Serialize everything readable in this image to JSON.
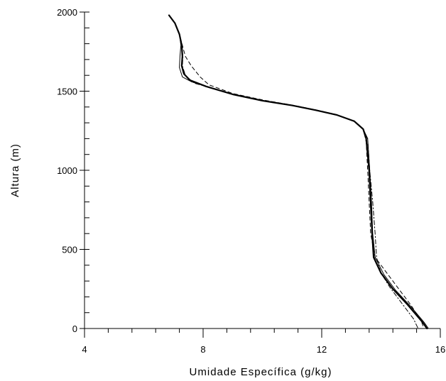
{
  "chart_data": {
    "type": "line",
    "title": "",
    "xlabel": "Umidade Específica (g/kg)",
    "ylabel": "Altura (m)",
    "xlim": [
      4,
      16
    ],
    "ylim": [
      0,
      2000
    ],
    "x_ticks": [
      4,
      8,
      12,
      16
    ],
    "y_ticks": [
      0,
      500,
      1000,
      1500,
      2000
    ],
    "x_minor_step": 0.8,
    "y_minor_step": 100,
    "grid": false,
    "legend": "none",
    "line_color": "#000000",
    "series": [
      {
        "style": "solid-bold",
        "points": [
          [
            6.85,
            1980
          ],
          [
            7.05,
            1930
          ],
          [
            7.2,
            1860
          ],
          [
            7.28,
            1790
          ],
          [
            7.3,
            1720
          ],
          [
            7.28,
            1660
          ],
          [
            7.35,
            1610
          ],
          [
            7.55,
            1570
          ],
          [
            8.1,
            1530
          ],
          [
            9.0,
            1480
          ],
          [
            10.0,
            1440
          ],
          [
            11.0,
            1410
          ],
          [
            11.8,
            1380
          ],
          [
            12.5,
            1350
          ],
          [
            13.1,
            1310
          ],
          [
            13.4,
            1260
          ],
          [
            13.5,
            1200
          ],
          [
            13.6,
            1000
          ],
          [
            13.65,
            800
          ],
          [
            13.7,
            600
          ],
          [
            13.75,
            450
          ],
          [
            14.0,
            350
          ],
          [
            14.4,
            250
          ],
          [
            14.9,
            150
          ],
          [
            15.4,
            40
          ],
          [
            15.55,
            0
          ]
        ]
      },
      {
        "style": "solid-thin",
        "points": [
          [
            6.85,
            1980
          ],
          [
            7.05,
            1930
          ],
          [
            7.2,
            1860
          ],
          [
            7.25,
            1790
          ],
          [
            7.22,
            1720
          ],
          [
            7.2,
            1650
          ],
          [
            7.3,
            1590
          ],
          [
            7.6,
            1560
          ],
          [
            8.1,
            1530
          ],
          [
            9.0,
            1480
          ],
          [
            10.0,
            1440
          ],
          [
            11.0,
            1410
          ],
          [
            11.8,
            1380
          ],
          [
            12.5,
            1350
          ],
          [
            13.1,
            1310
          ],
          [
            13.4,
            1260
          ],
          [
            13.55,
            1200
          ],
          [
            13.62,
            1000
          ],
          [
            13.68,
            800
          ],
          [
            13.72,
            600
          ],
          [
            13.8,
            450
          ],
          [
            14.1,
            340
          ],
          [
            14.5,
            240
          ],
          [
            15.0,
            140
          ],
          [
            15.45,
            40
          ],
          [
            15.6,
            0
          ]
        ]
      },
      {
        "style": "dashed",
        "points": [
          [
            6.85,
            1980
          ],
          [
            7.05,
            1930
          ],
          [
            7.2,
            1860
          ],
          [
            7.3,
            1790
          ],
          [
            7.4,
            1720
          ],
          [
            7.6,
            1660
          ],
          [
            7.9,
            1590
          ],
          [
            8.2,
            1540
          ],
          [
            9.0,
            1485
          ],
          [
            10.0,
            1445
          ],
          [
            11.0,
            1412
          ],
          [
            11.8,
            1382
          ],
          [
            12.5,
            1352
          ],
          [
            13.1,
            1312
          ],
          [
            13.4,
            1262
          ],
          [
            13.5,
            1180
          ],
          [
            13.55,
            1000
          ],
          [
            13.6,
            800
          ],
          [
            13.65,
            600
          ],
          [
            13.8,
            450
          ],
          [
            14.2,
            350
          ],
          [
            14.6,
            250
          ],
          [
            15.0,
            150
          ],
          [
            15.35,
            50
          ],
          [
            15.45,
            0
          ]
        ]
      },
      {
        "style": "dash-dot",
        "points": [
          [
            6.85,
            1980
          ],
          [
            7.05,
            1930
          ],
          [
            7.2,
            1860
          ],
          [
            7.28,
            1790
          ],
          [
            7.32,
            1720
          ],
          [
            7.3,
            1660
          ],
          [
            7.4,
            1600
          ],
          [
            7.7,
            1550
          ],
          [
            8.3,
            1520
          ],
          [
            9.0,
            1482
          ],
          [
            10.0,
            1442
          ],
          [
            11.0,
            1411
          ],
          [
            11.8,
            1381
          ],
          [
            12.5,
            1351
          ],
          [
            13.1,
            1311
          ],
          [
            13.4,
            1261
          ],
          [
            13.55,
            1200
          ],
          [
            13.62,
            1000
          ],
          [
            13.72,
            800
          ],
          [
            13.8,
            600
          ],
          [
            13.85,
            450
          ],
          [
            14.0,
            350
          ],
          [
            14.3,
            260
          ],
          [
            14.7,
            160
          ],
          [
            15.1,
            60
          ],
          [
            15.25,
            0
          ]
        ]
      }
    ]
  }
}
